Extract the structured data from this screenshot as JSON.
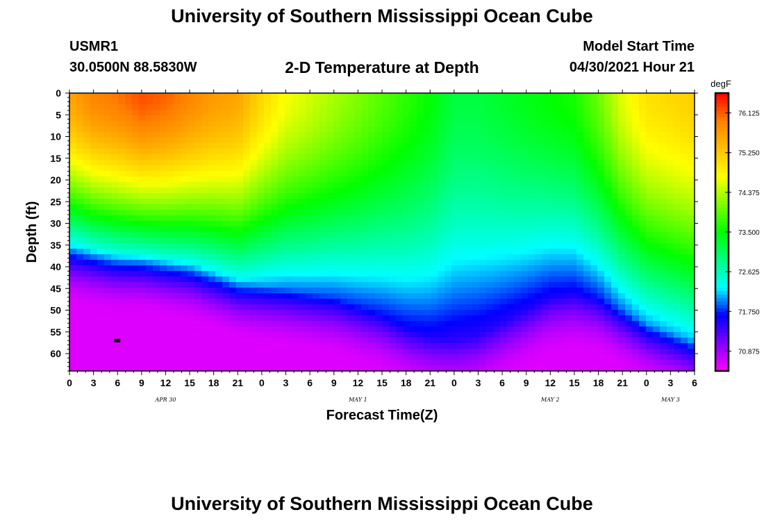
{
  "header": {
    "top_title": "University of Southern Mississippi Ocean Cube",
    "station_id": "USMR1",
    "coords": "30.0500N  88.5830W",
    "plot_title": "2-D Temperature at Depth",
    "start_label": "Model Start Time",
    "start_value": "04/30/2021 Hour 21",
    "bottom_title": "University of Southern Mississippi Ocean Cube"
  },
  "chart_data": {
    "type": "heatmap",
    "title": "2-D Temperature at Depth",
    "xlabel": "Forecast Time(Z)",
    "ylabel": "Depth (ft)",
    "x_tick_labels": [
      "0",
      "3",
      "6",
      "9",
      "12",
      "15",
      "18",
      "21",
      "0",
      "3",
      "6",
      "9",
      "12",
      "15",
      "18",
      "21",
      "0",
      "3",
      "6",
      "9",
      "12",
      "15",
      "18",
      "21",
      "0",
      "3",
      "6"
    ],
    "x_range_hours": [
      0,
      78
    ],
    "day_labels": [
      {
        "label": "APR 30",
        "hour": 12
      },
      {
        "label": "MAY 1",
        "hour": 36
      },
      {
        "label": "MAY 2",
        "hour": 60
      },
      {
        "label": "MAY 3",
        "hour": 75
      }
    ],
    "y_ticks": [
      0,
      5,
      10,
      15,
      20,
      25,
      30,
      35,
      40,
      45,
      50,
      55,
      60
    ],
    "y_range": [
      0,
      64
    ],
    "y_inverted": true,
    "colorbar": {
      "unit": "degF",
      "ticks": [
        "76.125",
        "75.250",
        "74.375",
        "73.500",
        "72.625",
        "71.750",
        "70.875"
      ],
      "tick_values": [
        76.125,
        75.25,
        74.375,
        73.5,
        72.625,
        71.75,
        70.875
      ],
      "range": [
        70.4375,
        76.5625
      ]
    },
    "profile_hours": [
      0,
      3,
      6,
      9,
      12,
      15,
      18,
      21,
      24,
      27,
      30,
      33,
      36,
      39,
      42,
      45,
      48,
      51,
      54,
      57,
      60,
      63,
      66,
      69,
      72,
      75,
      78
    ],
    "thermocline_depth_ft": [
      35,
      36,
      37,
      37,
      38,
      39,
      41,
      43,
      44,
      45,
      46,
      47,
      49,
      51,
      54,
      56,
      57,
      56,
      53,
      50,
      47,
      46,
      47,
      50,
      53,
      55,
      57
    ],
    "surface_temp_degF": [
      75.6,
      75.9,
      76.0,
      76.2,
      76.1,
      75.9,
      75.7,
      75.6,
      75.1,
      74.7,
      74.5,
      74.3,
      74.1,
      73.9,
      73.7,
      73.5,
      73.2,
      73.2,
      73.3,
      73.4,
      73.5,
      73.6,
      74.0,
      74.6,
      75.0,
      75.1,
      75.2
    ],
    "bottom_temp_degF": 70.6,
    "marker": {
      "hour": 6,
      "depth_ft": 57
    }
  },
  "colors": {
    "scale": [
      "#ff00ff",
      "#8000ff",
      "#0000ff",
      "#00ffff",
      "#00ff80",
      "#00ff00",
      "#80ff00",
      "#ffff00",
      "#ffc000",
      "#ff8000",
      "#ff0000"
    ]
  }
}
